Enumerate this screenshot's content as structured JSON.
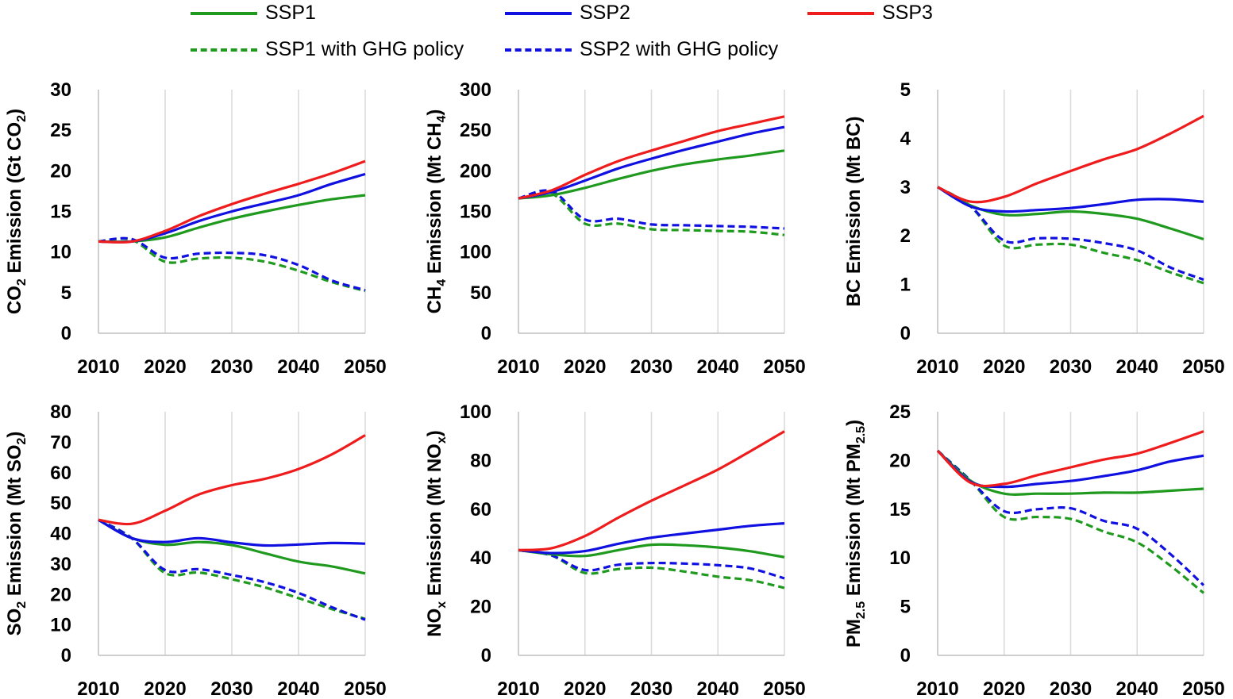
{
  "legend": {
    "items": [
      {
        "label": "SSP1",
        "color": "#1f9a1f",
        "dash": false
      },
      {
        "label": "SSP2",
        "color": "#1010e0",
        "dash": false
      },
      {
        "label": "SSP3",
        "color": "#ee1c1c",
        "dash": false
      },
      {
        "label": "SSP1 with GHG policy",
        "color": "#1f9a1f",
        "dash": true
      },
      {
        "label": "SSP2 with GHG policy",
        "color": "#1010e0",
        "dash": true
      }
    ]
  },
  "chart_data": [
    {
      "type": "line",
      "ylabel": "CO₂ Emission (Gt CO₂)",
      "ylabel_parts": [
        [
          "CO",
          ""
        ],
        [
          "2",
          "sub"
        ],
        [
          " Emission (Gt CO",
          ""
        ],
        [
          "2",
          "sub"
        ],
        [
          ")",
          ""
        ]
      ],
      "xticks": [
        2010,
        2020,
        2030,
        2040,
        2050
      ],
      "yticks": [
        0,
        5,
        10,
        15,
        20,
        25,
        30
      ],
      "xlim": [
        2010,
        2050
      ],
      "ylim": [
        0,
        30
      ],
      "grid": "vertical",
      "x": [
        2010,
        2015,
        2020,
        2025,
        2030,
        2035,
        2040,
        2045,
        2050
      ],
      "series": [
        {
          "name": "SSP1",
          "values": [
            11.3,
            11.3,
            11.8,
            13.0,
            14.1,
            15.0,
            15.8,
            16.5,
            17.0
          ]
        },
        {
          "name": "SSP2",
          "values": [
            11.3,
            11.3,
            12.3,
            13.8,
            15.0,
            16.0,
            17.0,
            18.4,
            19.6
          ]
        },
        {
          "name": "SSP3",
          "values": [
            11.3,
            11.3,
            12.6,
            14.4,
            15.9,
            17.2,
            18.4,
            19.7,
            21.2
          ]
        },
        {
          "name": "SSP1 with GHG policy",
          "values": [
            11.3,
            11.5,
            8.8,
            9.2,
            9.3,
            8.8,
            7.7,
            6.3,
            5.2
          ]
        },
        {
          "name": "SSP2 with GHG policy",
          "values": [
            11.3,
            11.6,
            9.3,
            9.8,
            9.9,
            9.6,
            8.4,
            6.5,
            5.3
          ]
        }
      ]
    },
    {
      "type": "line",
      "ylabel": "CH₄ Emission (Mt CH₄)",
      "ylabel_parts": [
        [
          "CH",
          ""
        ],
        [
          "4",
          "sub"
        ],
        [
          " Emission (Mt CH",
          ""
        ],
        [
          "4",
          "sub"
        ],
        [
          ")",
          ""
        ]
      ],
      "xticks": [
        2010,
        2020,
        2030,
        2040,
        2050
      ],
      "yticks": [
        0,
        50,
        100,
        150,
        200,
        250,
        300
      ],
      "xlim": [
        2010,
        2050
      ],
      "ylim": [
        0,
        300
      ],
      "grid": "vertical",
      "x": [
        2010,
        2015,
        2020,
        2025,
        2030,
        2035,
        2040,
        2045,
        2050
      ],
      "series": [
        {
          "name": "SSP1",
          "values": [
            166,
            170,
            179,
            190,
            200,
            208,
            214,
            219,
            225
          ]
        },
        {
          "name": "SSP2",
          "values": [
            166,
            174,
            188,
            203,
            215,
            226,
            236,
            246,
            254
          ]
        },
        {
          "name": "SSP3",
          "values": [
            166,
            176,
            195,
            212,
            225,
            237,
            249,
            258,
            267
          ]
        },
        {
          "name": "SSP1 with GHG policy",
          "values": [
            166,
            172,
            135,
            135,
            128,
            127,
            126,
            125,
            121
          ]
        },
        {
          "name": "SSP2 with GHG policy",
          "values": [
            166,
            175,
            140,
            141,
            134,
            133,
            132,
            131,
            129
          ]
        }
      ]
    },
    {
      "type": "line",
      "ylabel": "BC Emission (Mt BC)",
      "ylabel_parts": [
        [
          "BC Emission (Mt BC)",
          ""
        ]
      ],
      "xticks": [
        2010,
        2020,
        2030,
        2040,
        2050
      ],
      "yticks": [
        0,
        1,
        2,
        3,
        4,
        5
      ],
      "xlim": [
        2010,
        2050
      ],
      "ylim": [
        0,
        5
      ],
      "grid": "vertical",
      "x": [
        2010,
        2015,
        2020,
        2025,
        2030,
        2035,
        2040,
        2045,
        2050
      ],
      "series": [
        {
          "name": "SSP1",
          "values": [
            3.0,
            2.62,
            2.43,
            2.45,
            2.5,
            2.45,
            2.35,
            2.15,
            1.93
          ]
        },
        {
          "name": "SSP2",
          "values": [
            3.0,
            2.6,
            2.5,
            2.53,
            2.57,
            2.65,
            2.74,
            2.75,
            2.7
          ]
        },
        {
          "name": "SSP3",
          "values": [
            3.0,
            2.7,
            2.8,
            3.08,
            3.33,
            3.57,
            3.78,
            4.1,
            4.46
          ]
        },
        {
          "name": "SSP1 with GHG policy",
          "values": [
            3.0,
            2.6,
            1.8,
            1.82,
            1.82,
            1.65,
            1.5,
            1.25,
            1.03
          ]
        },
        {
          "name": "SSP2 with GHG policy",
          "values": [
            3.0,
            2.6,
            1.9,
            1.95,
            1.94,
            1.85,
            1.7,
            1.35,
            1.1
          ]
        }
      ]
    },
    {
      "type": "line",
      "ylabel": "SO₂ Emission (Mt SO₂)",
      "ylabel_parts": [
        [
          "SO",
          ""
        ],
        [
          "2",
          "sub"
        ],
        [
          " Emission (Mt SO",
          ""
        ],
        [
          "2",
          "sub"
        ],
        [
          ")",
          ""
        ]
      ],
      "xticks": [
        2010,
        2020,
        2030,
        2040,
        2050
      ],
      "yticks": [
        0,
        10,
        20,
        30,
        40,
        50,
        60,
        70,
        80
      ],
      "xlim": [
        2010,
        2050
      ],
      "ylim": [
        0,
        80
      ],
      "grid": "vertical",
      "x": [
        2010,
        2015,
        2020,
        2025,
        2030,
        2035,
        2040,
        2045,
        2050
      ],
      "series": [
        {
          "name": "SSP1",
          "values": [
            44.5,
            38.5,
            36.3,
            37.2,
            36.2,
            33.5,
            30.8,
            29.2,
            26.9
          ]
        },
        {
          "name": "SSP2",
          "values": [
            44.5,
            38.5,
            37.2,
            38.5,
            37.1,
            36.1,
            36.4,
            36.9,
            36.7
          ]
        },
        {
          "name": "SSP3",
          "values": [
            44.5,
            43.2,
            47.5,
            52.8,
            55.9,
            58.0,
            61.2,
            66.0,
            72.3
          ]
        },
        {
          "name": "SSP1 with GHG policy",
          "values": [
            44.5,
            38.5,
            27.0,
            27.2,
            25.0,
            22.3,
            18.8,
            15.2,
            12.0
          ]
        },
        {
          "name": "SSP2 with GHG policy",
          "values": [
            44.5,
            38.5,
            28.0,
            28.3,
            26.4,
            24.0,
            20.5,
            15.8,
            11.7
          ]
        }
      ]
    },
    {
      "type": "line",
      "ylabel": "NOₓ Emission (Mt NOₓ)",
      "ylabel_parts": [
        [
          "NO",
          ""
        ],
        [
          "x",
          "sub"
        ],
        [
          " Emission (Mt NO",
          ""
        ],
        [
          "x",
          "sub"
        ],
        [
          ")",
          ""
        ]
      ],
      "xticks": [
        2010,
        2020,
        2030,
        2040,
        2050
      ],
      "yticks": [
        0,
        20,
        40,
        60,
        80,
        100
      ],
      "xlim": [
        2010,
        2050
      ],
      "ylim": [
        0,
        100
      ],
      "grid": "vertical",
      "x": [
        2010,
        2015,
        2020,
        2025,
        2030,
        2035,
        2040,
        2045,
        2050
      ],
      "series": [
        {
          "name": "SSP1",
          "values": [
            43.2,
            41.5,
            40.8,
            43.2,
            45.4,
            45.2,
            44.3,
            42.7,
            40.3
          ]
        },
        {
          "name": "SSP2",
          "values": [
            43.2,
            42.0,
            42.8,
            45.8,
            48.3,
            50.0,
            51.6,
            53.2,
            54.2
          ]
        },
        {
          "name": "SSP3",
          "values": [
            43.2,
            44.0,
            49.0,
            56.5,
            63.5,
            69.8,
            76.3,
            84.0,
            92.0
          ]
        },
        {
          "name": "SSP1 with GHG policy",
          "values": [
            43.2,
            41.0,
            33.8,
            35.4,
            36.0,
            34.4,
            32.3,
            30.8,
            27.7
          ]
        },
        {
          "name": "SSP2 with GHG policy",
          "values": [
            43.2,
            41.0,
            35.0,
            37.2,
            37.9,
            37.7,
            37.0,
            35.6,
            31.6
          ]
        }
      ]
    },
    {
      "type": "line",
      "ylabel": "PM₂.₅ Emission (Mt PM₂.₅)",
      "ylabel_parts": [
        [
          "PM",
          ""
        ],
        [
          "2.5",
          "sub"
        ],
        [
          " Emission (Mt PM",
          ""
        ],
        [
          "2.5",
          "sub"
        ],
        [
          ")",
          ""
        ]
      ],
      "xticks": [
        2010,
        2020,
        2030,
        2040,
        2050
      ],
      "yticks": [
        0,
        5,
        10,
        15,
        20,
        25
      ],
      "xlim": [
        2010,
        2050
      ],
      "ylim": [
        0,
        25
      ],
      "grid": "vertical",
      "x": [
        2010,
        2015,
        2020,
        2025,
        2030,
        2035,
        2040,
        2045,
        2050
      ],
      "series": [
        {
          "name": "SSP1",
          "values": [
            21.0,
            17.9,
            16.6,
            16.6,
            16.6,
            16.7,
            16.7,
            16.9,
            17.1
          ]
        },
        {
          "name": "SSP2",
          "values": [
            21.0,
            17.8,
            17.3,
            17.6,
            17.9,
            18.4,
            19.0,
            19.9,
            20.5
          ]
        },
        {
          "name": "SSP3",
          "values": [
            21.0,
            17.7,
            17.6,
            18.5,
            19.3,
            20.1,
            20.7,
            21.8,
            23.0
          ]
        },
        {
          "name": "SSP1 with GHG policy",
          "values": [
            21.0,
            17.9,
            14.2,
            14.2,
            14.0,
            12.7,
            11.6,
            9.2,
            6.4
          ]
        },
        {
          "name": "SSP2 with GHG policy",
          "values": [
            21.0,
            17.9,
            14.8,
            15.0,
            15.1,
            13.8,
            13.0,
            10.4,
            7.2
          ]
        }
      ]
    }
  ]
}
